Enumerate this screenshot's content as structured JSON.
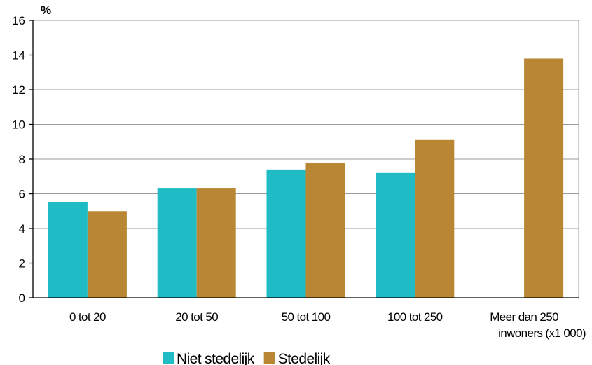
{
  "chart_data": {
    "type": "bar",
    "ylabel": "%",
    "xlabel": "inwoners (x1 000)",
    "ylim": [
      0,
      16
    ],
    "yticks": [
      0,
      2,
      4,
      6,
      8,
      10,
      12,
      14,
      16
    ],
    "grid": true,
    "legend_position": "bottom",
    "categories": [
      "0 tot 20",
      "20 tot 50",
      "50 tot 100",
      "100 tot 250",
      "Meer dan 250"
    ],
    "series": [
      {
        "name": "Niet stedelijk",
        "color": "#1fbcc6",
        "values": [
          5.5,
          6.3,
          7.4,
          7.2,
          null
        ]
      },
      {
        "name": "Stedelijk",
        "color": "#b98633",
        "values": [
          5.0,
          6.3,
          7.8,
          9.1,
          13.8
        ]
      }
    ]
  }
}
